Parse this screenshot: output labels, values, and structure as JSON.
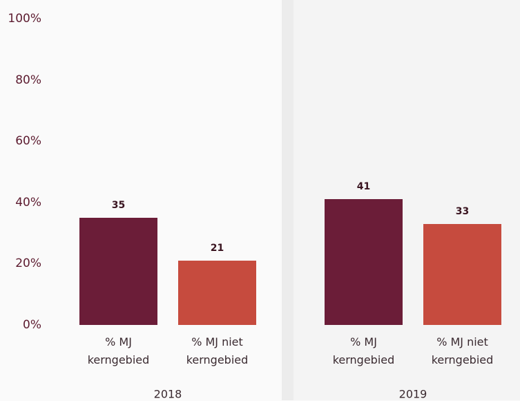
{
  "chart_data": {
    "type": "bar",
    "x": [
      "2018",
      "2019"
    ],
    "series": [
      {
        "name": "% MJ kerngebied",
        "color": "#6b1d38",
        "values": [
          35,
          41
        ]
      },
      {
        "name": "% MJ niet kerngebied",
        "color": "#c64b3e",
        "values": [
          21,
          33
        ]
      }
    ],
    "ylim": [
      0,
      100
    ],
    "yticks": [
      {
        "value": 0,
        "label": "0%"
      },
      {
        "value": 20,
        "label": "20%"
      },
      {
        "value": 40,
        "label": "40%"
      },
      {
        "value": 60,
        "label": "60%"
      },
      {
        "value": 80,
        "label": "80%"
      },
      {
        "value": 100,
        "label": "100%"
      }
    ]
  }
}
